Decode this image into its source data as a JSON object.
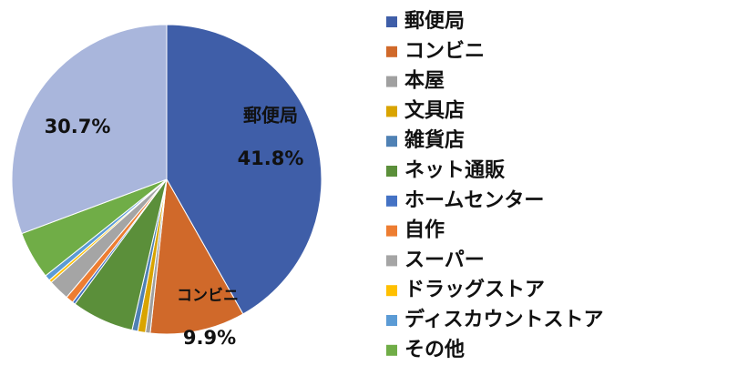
{
  "chart_data": {
    "type": "pie",
    "categories": [
      "郵便局",
      "コンビニ",
      "本屋",
      "文具店",
      "雑貨店",
      "ネット通販",
      "ホームセンター",
      "自作",
      "スーパー",
      "ドラッグストア",
      "ディスカウントストア",
      "その他",
      null
    ],
    "values": [
      41.8,
      9.9,
      0.5,
      0.8,
      0.6,
      6.5,
      0.3,
      0.8,
      2.2,
      0.3,
      0.6,
      5.0,
      30.7
    ],
    "value_labels": [
      "41.8%",
      "9.9%",
      null,
      null,
      null,
      null,
      null,
      null,
      null,
      null,
      null,
      null,
      "30.7%"
    ],
    "colors": [
      "#3f5ea8",
      "#d0692a",
      "#a0a0a0",
      "#d9a400",
      "#4f81b4",
      "#5b8f3a",
      "#4472c4",
      "#ed7d31",
      "#a5a5a5",
      "#ffc000",
      "#5b9bd5",
      "#70ad47",
      "#a9b6dc"
    ],
    "legend": "right"
  }
}
